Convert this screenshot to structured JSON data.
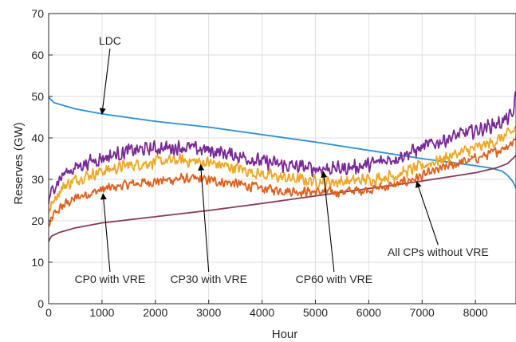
{
  "chart_data": {
    "type": "line",
    "title": "",
    "xlabel": "Hour",
    "ylabel": "Reserves (GW)",
    "xlim": [
      0,
      8760
    ],
    "ylim": [
      0,
      70
    ],
    "xticks": [
      0,
      1000,
      2000,
      3000,
      4000,
      5000,
      6000,
      7000,
      8000
    ],
    "yticks": [
      0,
      10,
      20,
      30,
      40,
      50,
      60,
      70
    ],
    "grid": true,
    "legend": "none (series identified by arrow annotations)",
    "series": [
      {
        "name": "LDC",
        "color": "#2b8fd6",
        "x": [
          0,
          100,
          500,
          1000,
          2000,
          3000,
          4000,
          5000,
          6000,
          7000,
          7600,
          8000,
          8300,
          8500,
          8600,
          8700,
          8760
        ],
        "y": [
          49.8,
          48.5,
          47.0,
          45.8,
          44.0,
          42.6,
          40.8,
          39.0,
          37.0,
          35.0,
          34.0,
          33.3,
          32.7,
          32.0,
          31.0,
          29.5,
          27.9
        ],
        "noise": 0
      },
      {
        "name": "All CPs without VRE",
        "color": "#8b3a52",
        "x": [
          0,
          50,
          200,
          500,
          1000,
          2000,
          3000,
          4000,
          5000,
          6000,
          7000,
          7500,
          8000,
          8400,
          8600,
          8700,
          8760
        ],
        "y": [
          15.0,
          16.3,
          17.2,
          18.3,
          19.5,
          21.0,
          22.5,
          24.2,
          26.0,
          27.8,
          29.6,
          30.6,
          31.6,
          32.8,
          33.8,
          35.0,
          35.8
        ],
        "noise": 0
      },
      {
        "name": "CP0 with VRE",
        "color": "#e0601d",
        "x": [
          0,
          100,
          300,
          600,
          1000,
          1500,
          2000,
          2500,
          3000,
          3500,
          4000,
          4500,
          5000,
          5500,
          6000,
          6500,
          7000,
          7500,
          8000,
          8300,
          8500,
          8700,
          8760
        ],
        "y": [
          18.5,
          21.5,
          24.0,
          26.0,
          27.5,
          28.8,
          29.5,
          30.2,
          29.8,
          29.0,
          27.8,
          27.2,
          27.0,
          27.0,
          27.6,
          28.6,
          30.8,
          33.2,
          35.0,
          36.2,
          37.5,
          39.0,
          40.5
        ],
        "noise": 0.9
      },
      {
        "name": "CP30 with VRE",
        "color": "#efa826",
        "x": [
          0,
          100,
          300,
          600,
          1000,
          1500,
          2000,
          2500,
          3000,
          3500,
          4000,
          4500,
          5000,
          5500,
          6000,
          6500,
          7000,
          7500,
          8000,
          8300,
          8500,
          8700,
          8760
        ],
        "y": [
          21.5,
          25.5,
          28.5,
          30.5,
          32.0,
          33.4,
          34.2,
          34.6,
          34.0,
          32.8,
          31.2,
          30.2,
          29.6,
          29.4,
          30.0,
          31.0,
          33.2,
          35.6,
          37.5,
          38.8,
          40.0,
          41.5,
          42.5
        ],
        "noise": 1.1
      },
      {
        "name": "CP60 with VRE",
        "color": "#7a2a96",
        "x": [
          0,
          100,
          300,
          600,
          1000,
          1500,
          2000,
          2500,
          3000,
          3500,
          4000,
          4500,
          5000,
          5500,
          6000,
          6500,
          7000,
          7500,
          8000,
          8300,
          8500,
          8700,
          8760
        ],
        "y": [
          24.5,
          28.5,
          31.5,
          33.5,
          35.2,
          36.8,
          37.5,
          37.8,
          37.0,
          35.8,
          34.3,
          33.2,
          32.6,
          32.6,
          33.5,
          35.2,
          37.6,
          40.0,
          41.8,
          43.0,
          43.8,
          45.5,
          50.5
        ],
        "noise": 1.3
      }
    ],
    "annotations": [
      {
        "text": "LDC",
        "label_x": 1150,
        "label_y": 62.5,
        "arrow_x": 1000,
        "arrow_y": 45.8
      },
      {
        "text": "CP0 with VRE",
        "label_x": 1150,
        "label_y": 5.0,
        "arrow_x": 1020,
        "arrow_y": 26.5
      },
      {
        "text": "CP30 with VRE",
        "label_x": 3000,
        "label_y": 5.0,
        "arrow_x": 2850,
        "arrow_y": 33.5
      },
      {
        "text": "CP60 with VRE",
        "label_x": 5350,
        "label_y": 5.0,
        "arrow_x": 5150,
        "arrow_y": 31.8
      },
      {
        "text": "All CPs without VRE",
        "label_x": 7300,
        "label_y": 11.5,
        "arrow_x": 6900,
        "arrow_y": 29.4
      }
    ]
  }
}
